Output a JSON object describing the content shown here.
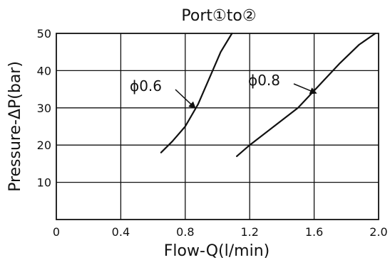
{
  "chart_data": {
    "type": "line",
    "title": "Port①to②",
    "xlabel": "Flow-Q(l/min)",
    "ylabel": "Pressure-ΔP(bar)",
    "xlim": [
      0,
      2.0
    ],
    "ylim": [
      0,
      50
    ],
    "x_ticks": [
      0,
      0.4,
      0.8,
      1.2,
      1.6,
      2.0
    ],
    "x_tick_labels": [
      "0",
      "0.4",
      "0.8",
      "1.2",
      "1.6",
      "2.0"
    ],
    "y_ticks": [
      10,
      20,
      30,
      40,
      50
    ],
    "y_tick_labels": [
      "10",
      "20",
      "30",
      "40",
      "50"
    ],
    "grid": true,
    "series": [
      {
        "name": "ϕ0.6",
        "color": "#111111",
        "points": [
          [
            0.65,
            18.0
          ],
          [
            0.72,
            21.0
          ],
          [
            0.8,
            25.0
          ],
          [
            0.88,
            31.0
          ],
          [
            0.95,
            38.0
          ],
          [
            1.02,
            45.0
          ],
          [
            1.09,
            50.0
          ]
        ]
      },
      {
        "name": "ϕ0.8",
        "color": "#111111",
        "points": [
          [
            1.12,
            17.0
          ],
          [
            1.2,
            20.0
          ],
          [
            1.35,
            25.0
          ],
          [
            1.5,
            30.0
          ],
          [
            1.63,
            36.0
          ],
          [
            1.76,
            42.0
          ],
          [
            1.88,
            47.0
          ],
          [
            1.98,
            50.0
          ]
        ]
      }
    ],
    "annotations": [
      {
        "series": 0,
        "text": "ϕ0.6",
        "target_x": 0.86,
        "target_y": 30.0
      },
      {
        "series": 1,
        "text": "ϕ0.8",
        "target_x": 1.61,
        "target_y": 34.0
      }
    ]
  }
}
